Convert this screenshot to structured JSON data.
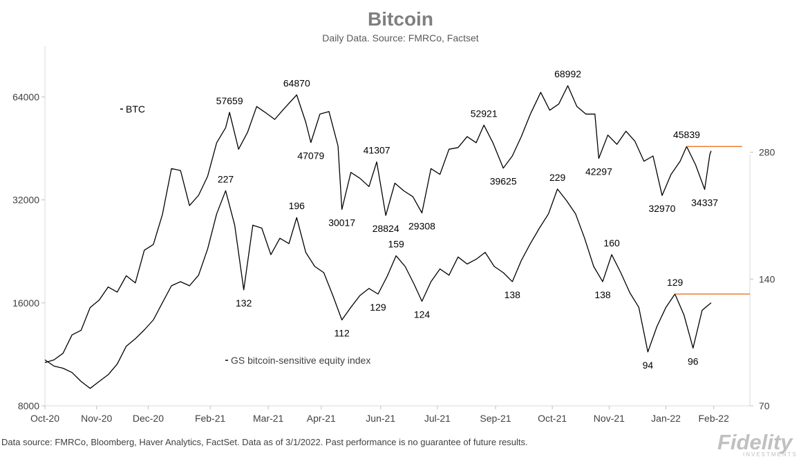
{
  "chart_data": {
    "type": "line",
    "title": "Bitcoin",
    "subtitle": "Daily Data. Source: FMRCo, Factset",
    "x_axis": {
      "ticks": [
        "Oct-20",
        "Nov-20",
        "Dec-20",
        "Feb-21",
        "Mar-21",
        "Apr-21",
        "Jun-21",
        "Jul-21",
        "Sep-21",
        "Oct-21",
        "Nov-21",
        "Jan-22",
        "Feb-22"
      ]
    },
    "left_axis": {
      "scale": "log",
      "ticks": [
        8000,
        16000,
        32000,
        64000
      ],
      "range": [
        8000,
        90000
      ]
    },
    "right_axis": {
      "scale": "log",
      "ticks": [
        70,
        140,
        280
      ],
      "range": [
        70,
        500
      ]
    },
    "grid": false,
    "series": [
      {
        "name": "BTC",
        "axis": "left",
        "color": "#000000",
        "points": [
          [
            "2020-10-01",
            10700
          ],
          [
            "2020-10-08",
            10900
          ],
          [
            "2020-10-15",
            11400
          ],
          [
            "2020-10-22",
            12900
          ],
          [
            "2020-10-29",
            13300
          ],
          [
            "2020-11-05",
            15500
          ],
          [
            "2020-11-12",
            16300
          ],
          [
            "2020-11-19",
            17800
          ],
          [
            "2020-11-26",
            17200
          ],
          [
            "2020-12-03",
            19200
          ],
          [
            "2020-12-10",
            18300
          ],
          [
            "2020-12-17",
            22800
          ],
          [
            "2020-12-24",
            23700
          ],
          [
            "2020-12-31",
            29000
          ],
          [
            "2021-01-07",
            39500
          ],
          [
            "2021-01-14",
            39000
          ],
          [
            "2021-01-21",
            30800
          ],
          [
            "2021-01-28",
            33000
          ],
          [
            "2021-02-04",
            37500
          ],
          [
            "2021-02-11",
            47000
          ],
          [
            "2021-02-18",
            52000
          ],
          [
            "2021-02-21",
            57659
          ],
          [
            "2021-02-28",
            45000
          ],
          [
            "2021-03-07",
            50500
          ],
          [
            "2021-03-14",
            60000
          ],
          [
            "2021-03-21",
            57500
          ],
          [
            "2021-03-28",
            55000
          ],
          [
            "2021-04-04",
            59000
          ],
          [
            "2021-04-14",
            64870
          ],
          [
            "2021-04-21",
            54000
          ],
          [
            "2021-04-25",
            47079
          ],
          [
            "2021-05-02",
            57000
          ],
          [
            "2021-05-09",
            58000
          ],
          [
            "2021-05-16",
            46000
          ],
          [
            "2021-05-19",
            30017
          ],
          [
            "2021-05-26",
            38500
          ],
          [
            "2021-06-02",
            37000
          ],
          [
            "2021-06-09",
            35000
          ],
          [
            "2021-06-15",
            41307
          ],
          [
            "2021-06-22",
            28824
          ],
          [
            "2021-06-29",
            35800
          ],
          [
            "2021-07-06",
            34000
          ],
          [
            "2021-07-13",
            32700
          ],
          [
            "2021-07-20",
            29308
          ],
          [
            "2021-07-27",
            39500
          ],
          [
            "2021-08-03",
            38000
          ],
          [
            "2021-08-10",
            45000
          ],
          [
            "2021-08-17",
            45500
          ],
          [
            "2021-08-24",
            49000
          ],
          [
            "2021-08-31",
            47000
          ],
          [
            "2021-09-06",
            52921
          ],
          [
            "2021-09-13",
            47000
          ],
          [
            "2021-09-21",
            39625
          ],
          [
            "2021-09-28",
            43000
          ],
          [
            "2021-10-05",
            49000
          ],
          [
            "2021-10-12",
            57000
          ],
          [
            "2021-10-20",
            66000
          ],
          [
            "2021-10-27",
            58500
          ],
          [
            "2021-11-03",
            61000
          ],
          [
            "2021-11-10",
            68992
          ],
          [
            "2021-11-17",
            60000
          ],
          [
            "2021-11-24",
            57000
          ],
          [
            "2021-12-01",
            57000
          ],
          [
            "2021-12-04",
            42297
          ],
          [
            "2021-12-11",
            49500
          ],
          [
            "2021-12-18",
            46500
          ],
          [
            "2021-12-25",
            50800
          ],
          [
            "2022-01-01",
            47500
          ],
          [
            "2022-01-08",
            41500
          ],
          [
            "2022-01-15",
            43000
          ],
          [
            "2022-01-22",
            32970
          ],
          [
            "2022-01-29",
            38000
          ],
          [
            "2022-02-05",
            41500
          ],
          [
            "2022-02-10",
            45839
          ],
          [
            "2022-02-17",
            40500
          ],
          [
            "2022-02-24",
            34337
          ],
          [
            "2022-02-28",
            43500
          ],
          [
            "2022-03-01",
            44500
          ]
        ]
      },
      {
        "name": "GS bitcoin-sensitive equity index",
        "axis": "right",
        "color": "#000000",
        "points": [
          [
            "2020-10-01",
            90
          ],
          [
            "2020-10-08",
            87
          ],
          [
            "2020-10-15",
            86
          ],
          [
            "2020-10-22",
            84
          ],
          [
            "2020-10-29",
            80
          ],
          [
            "2020-11-05",
            77
          ],
          [
            "2020-11-12",
            80
          ],
          [
            "2020-11-19",
            83
          ],
          [
            "2020-11-26",
            88
          ],
          [
            "2020-12-03",
            97
          ],
          [
            "2020-12-10",
            101
          ],
          [
            "2020-12-17",
            106
          ],
          [
            "2020-12-24",
            112
          ],
          [
            "2020-12-31",
            123
          ],
          [
            "2021-01-07",
            135
          ],
          [
            "2021-01-14",
            138
          ],
          [
            "2021-01-21",
            135
          ],
          [
            "2021-01-28",
            143
          ],
          [
            "2021-02-04",
            165
          ],
          [
            "2021-02-11",
            200
          ],
          [
            "2021-02-18",
            227
          ],
          [
            "2021-02-25",
            188
          ],
          [
            "2021-03-04",
            132
          ],
          [
            "2021-03-11",
            188
          ],
          [
            "2021-03-18",
            185
          ],
          [
            "2021-03-25",
            160
          ],
          [
            "2021-04-01",
            175
          ],
          [
            "2021-04-08",
            170
          ],
          [
            "2021-04-14",
            196
          ],
          [
            "2021-04-21",
            162
          ],
          [
            "2021-04-28",
            150
          ],
          [
            "2021-05-05",
            145
          ],
          [
            "2021-05-12",
            128
          ],
          [
            "2021-05-19",
            112
          ],
          [
            "2021-05-26",
            120
          ],
          [
            "2021-06-02",
            128
          ],
          [
            "2021-06-09",
            133
          ],
          [
            "2021-06-16",
            129
          ],
          [
            "2021-06-23",
            142
          ],
          [
            "2021-06-30",
            159
          ],
          [
            "2021-07-07",
            150
          ],
          [
            "2021-07-14",
            136
          ],
          [
            "2021-07-20",
            124
          ],
          [
            "2021-07-27",
            138
          ],
          [
            "2021-08-03",
            148
          ],
          [
            "2021-08-10",
            143
          ],
          [
            "2021-08-17",
            158
          ],
          [
            "2021-08-24",
            152
          ],
          [
            "2021-08-31",
            156
          ],
          [
            "2021-09-07",
            162
          ],
          [
            "2021-09-14",
            150
          ],
          [
            "2021-09-21",
            145
          ],
          [
            "2021-09-28",
            138
          ],
          [
            "2021-10-05",
            155
          ],
          [
            "2021-10-12",
            170
          ],
          [
            "2021-10-19",
            185
          ],
          [
            "2021-10-26",
            200
          ],
          [
            "2021-11-02",
            229
          ],
          [
            "2021-11-09",
            215
          ],
          [
            "2021-11-16",
            200
          ],
          [
            "2021-11-23",
            175
          ],
          [
            "2021-11-30",
            150
          ],
          [
            "2021-12-07",
            138
          ],
          [
            "2021-12-14",
            160
          ],
          [
            "2021-12-21",
            145
          ],
          [
            "2021-12-28",
            130
          ],
          [
            "2022-01-04",
            120
          ],
          [
            "2022-01-11",
            94
          ],
          [
            "2022-01-18",
            108
          ],
          [
            "2022-01-25",
            120
          ],
          [
            "2022-02-01",
            129
          ],
          [
            "2022-02-08",
            115
          ],
          [
            "2022-02-15",
            96
          ],
          [
            "2022-02-22",
            118
          ],
          [
            "2022-03-01",
            123
          ]
        ]
      }
    ],
    "annotations": [
      {
        "series": "BTC",
        "date": "2021-02-21",
        "value": 57659,
        "text": "57659",
        "pos": "above"
      },
      {
        "series": "BTC",
        "date": "2021-04-14",
        "value": 64870,
        "text": "64870",
        "pos": "above"
      },
      {
        "series": "BTC",
        "date": "2021-04-25",
        "value": 47079,
        "text": "47079",
        "pos": "below"
      },
      {
        "series": "BTC",
        "date": "2021-05-19",
        "value": 30017,
        "text": "30017",
        "pos": "below"
      },
      {
        "series": "BTC",
        "date": "2021-06-15",
        "value": 41307,
        "text": "41307",
        "pos": "above"
      },
      {
        "series": "BTC",
        "date": "2021-06-22",
        "value": 28824,
        "text": "28824",
        "pos": "below"
      },
      {
        "series": "BTC",
        "date": "2021-07-20",
        "value": 29308,
        "text": "29308",
        "pos": "below"
      },
      {
        "series": "BTC",
        "date": "2021-09-06",
        "value": 52921,
        "text": "52921",
        "pos": "above"
      },
      {
        "series": "BTC",
        "date": "2021-09-21",
        "value": 39625,
        "text": "39625",
        "pos": "below"
      },
      {
        "series": "BTC",
        "date": "2021-11-10",
        "value": 68992,
        "text": "68992",
        "pos": "above"
      },
      {
        "series": "BTC",
        "date": "2021-12-04",
        "value": 42297,
        "text": "42297",
        "pos": "below"
      },
      {
        "series": "BTC",
        "date": "2022-01-22",
        "value": 32970,
        "text": "32970",
        "pos": "below"
      },
      {
        "series": "BTC",
        "date": "2022-02-10",
        "value": 45839,
        "text": "45839",
        "pos": "above"
      },
      {
        "series": "BTC",
        "date": "2022-02-24",
        "value": 34337,
        "text": "34337",
        "pos": "below"
      },
      {
        "series": "GS bitcoin-sensitive equity index",
        "date": "2021-02-18",
        "value": 227,
        "text": "227",
        "pos": "above"
      },
      {
        "series": "GS bitcoin-sensitive equity index",
        "date": "2021-03-04",
        "value": 132,
        "text": "132",
        "pos": "below"
      },
      {
        "series": "GS bitcoin-sensitive equity index",
        "date": "2021-04-14",
        "value": 196,
        "text": "196",
        "pos": "above"
      },
      {
        "series": "GS bitcoin-sensitive equity index",
        "date": "2021-05-19",
        "value": 112,
        "text": "112",
        "pos": "below"
      },
      {
        "series": "GS bitcoin-sensitive equity index",
        "date": "2021-06-16",
        "value": 129,
        "text": "129",
        "pos": "below"
      },
      {
        "series": "GS bitcoin-sensitive equity index",
        "date": "2021-06-30",
        "value": 159,
        "text": "159",
        "pos": "above"
      },
      {
        "series": "GS bitcoin-sensitive equity index",
        "date": "2021-07-20",
        "value": 124,
        "text": "124",
        "pos": "below"
      },
      {
        "series": "GS bitcoin-sensitive equity index",
        "date": "2021-09-28",
        "value": 138,
        "text": "138",
        "pos": "below"
      },
      {
        "series": "GS bitcoin-sensitive equity index",
        "date": "2021-11-02",
        "value": 229,
        "text": "229",
        "pos": "above"
      },
      {
        "series": "GS bitcoin-sensitive equity index",
        "date": "2021-12-07",
        "value": 138,
        "text": "138",
        "pos": "below"
      },
      {
        "series": "GS bitcoin-sensitive equity index",
        "date": "2021-12-14",
        "value": 160,
        "text": "160",
        "pos": "above"
      },
      {
        "series": "GS bitcoin-sensitive equity index",
        "date": "2022-01-11",
        "value": 94,
        "text": "94",
        "pos": "below"
      },
      {
        "series": "GS bitcoin-sensitive equity index",
        "date": "2022-02-01",
        "value": 129,
        "text": "129",
        "pos": "above"
      },
      {
        "series": "GS bitcoin-sensitive equity index",
        "date": "2022-02-15",
        "value": 96,
        "text": "96",
        "pos": "below"
      }
    ],
    "reference_lines": [
      {
        "axis": "left",
        "value": 45839,
        "from": "2022-02-10",
        "to": "2022-03-25",
        "color": "#ed7d31"
      },
      {
        "axis": "right",
        "value": 129,
        "from": "2022-02-01",
        "to": "2022-03-31",
        "color": "#ed7d31"
      }
    ],
    "legend": [
      {
        "text": "BTC"
      },
      {
        "text": "GS bitcoin-sensitive equity index"
      }
    ]
  },
  "footer": "Data source: FMRCo, Bloomberg, Haver Analytics, FactSet. Data as of 3/1/2022. Past performance is no guarantee of future results.",
  "logo": {
    "text": "Fidelity",
    "subtext": "INVESTMENTS",
    "color": "#c0c0c0"
  }
}
